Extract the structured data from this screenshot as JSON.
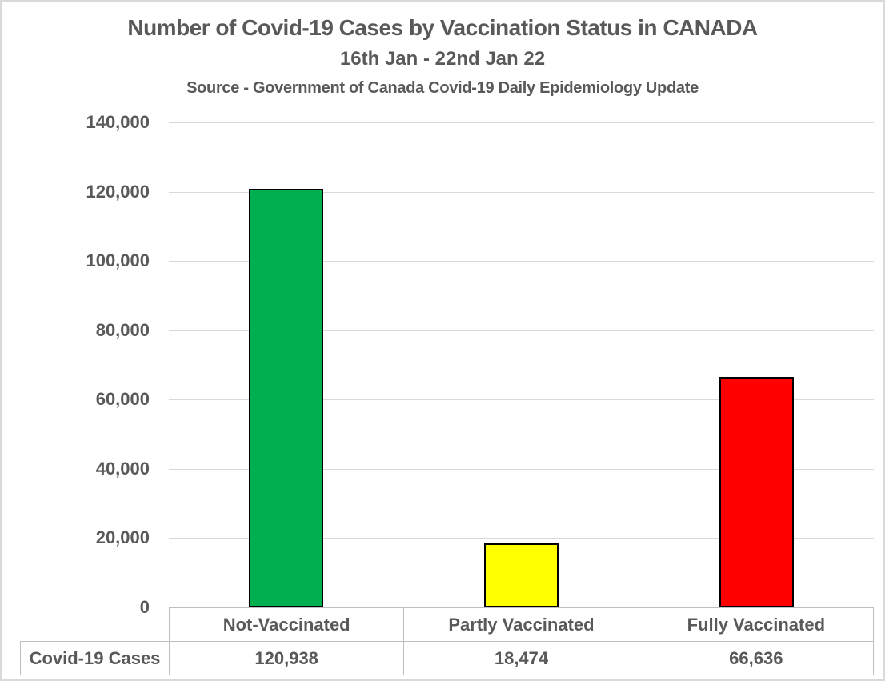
{
  "chart_data": {
    "type": "bar",
    "title": "Number of Covid-19 Cases by Vaccination Status in CANADA",
    "subtitle": "16th Jan - 22nd Jan 22",
    "source": "Source - Government of Canada Covid-19 Daily Epidemiology Update",
    "categories": [
      "Not-Vaccinated",
      "Partly Vaccinated",
      "Fully Vaccinated"
    ],
    "series": [
      {
        "name": "Covid-19 Cases",
        "values": [
          120938,
          18474,
          66636
        ]
      }
    ],
    "value_labels": [
      "120,938",
      "18,474",
      "66,636"
    ],
    "bar_colors": [
      "#00B050",
      "#FFFF00",
      "#FF0000"
    ],
    "ylim": [
      0,
      140000
    ],
    "ytick_step": 20000,
    "ytick_labels": [
      "140,000",
      "120,000",
      "100,000",
      "80,000",
      "60,000",
      "40,000",
      "20,000",
      "0"
    ],
    "grid": true,
    "legend_position": "none",
    "data_table_row_label": "Covid-19 Cases"
  },
  "colors": {
    "text": "#595959",
    "gridline": "#D9D9D9",
    "table_border": "#BFBFBF",
    "bar_outline": "#000000",
    "background": "#FFFFFF"
  }
}
